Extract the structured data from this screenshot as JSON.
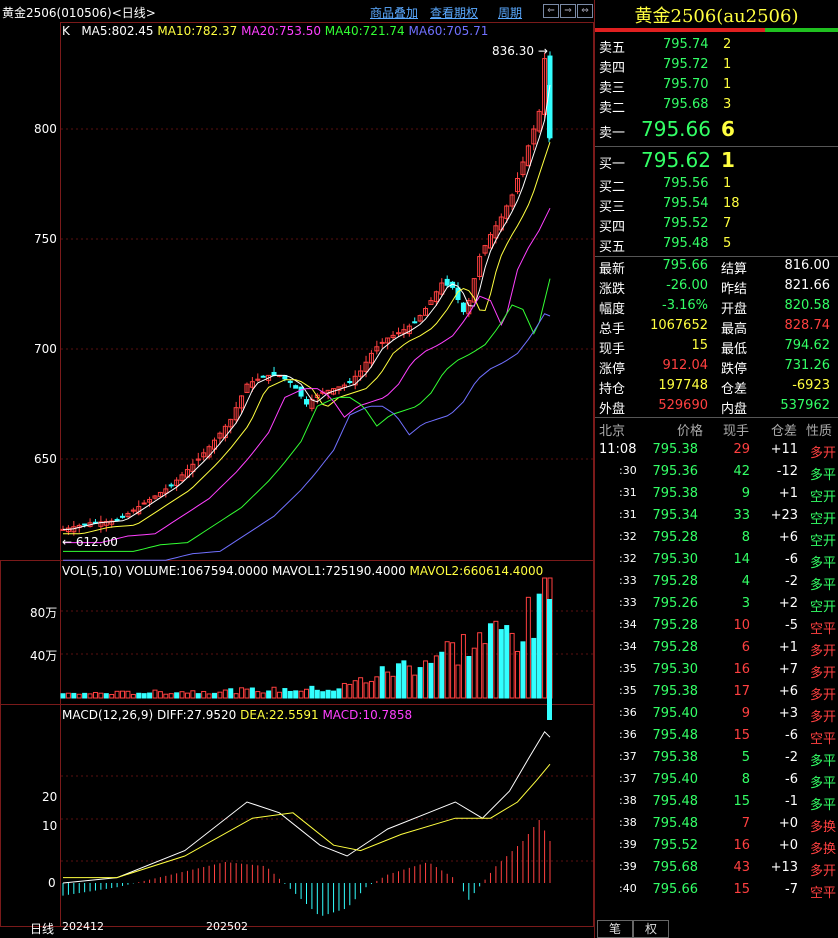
{
  "header": {
    "title": "黄金2506(010506)<日线>",
    "links": [
      "商品叠加",
      "查看期权",
      "周期"
    ]
  },
  "main_chart": {
    "k_label": "K",
    "ma": [
      {
        "label": "MA5:802.45",
        "color": "#ffffff"
      },
      {
        "label": "MA10:782.37",
        "color": "#ffff40"
      },
      {
        "label": "MA20:753.50",
        "color": "#ff40ff"
      },
      {
        "label": "MA40:721.74",
        "color": "#33ff33"
      },
      {
        "label": "MA60:705.71",
        "color": "#7070ff"
      }
    ],
    "y_ticks": [
      "800",
      "750",
      "700",
      "650"
    ],
    "high_label": "836.30",
    "low_label": "612.00"
  },
  "vol_chart": {
    "legend": "VOL(5,10) VOLUME:1067594.0000",
    "mavol1": "MAVOL1:725190.4000",
    "mavol2": "MAVOL2:660614.4000",
    "y_ticks": [
      "80万",
      "40万"
    ]
  },
  "macd_chart": {
    "legend": "MACD(12,26,9)",
    "diff": "DIFF:27.9520",
    "dea": "DEA:22.5591",
    "macd": "MACD:10.7858",
    "y_ticks": [
      "20",
      "10",
      "0"
    ]
  },
  "x_axis": {
    "label": "日线",
    "dates": [
      "202412",
      "202502"
    ]
  },
  "quote": {
    "title": "黄金2506(au2506)",
    "asks": [
      {
        "label": "卖五",
        "price": "795.74",
        "vol": "2"
      },
      {
        "label": "卖四",
        "price": "795.72",
        "vol": "1"
      },
      {
        "label": "卖三",
        "price": "795.70",
        "vol": "1"
      },
      {
        "label": "卖二",
        "price": "795.68",
        "vol": "3"
      },
      {
        "label": "卖一",
        "price": "795.66",
        "vol": "6"
      }
    ],
    "bids": [
      {
        "label": "买一",
        "price": "795.62",
        "vol": "1"
      },
      {
        "label": "买二",
        "price": "795.56",
        "vol": "1"
      },
      {
        "label": "买三",
        "price": "795.54",
        "vol": "18"
      },
      {
        "label": "买四",
        "price": "795.52",
        "vol": "7"
      },
      {
        "label": "买五",
        "price": "795.48",
        "vol": "5"
      }
    ],
    "stats": [
      {
        "l1": "最新",
        "v1": "795.66",
        "c1": "g",
        "l2": "结算",
        "v2": "816.00",
        "c2": "w"
      },
      {
        "l1": "涨跌",
        "v1": "-26.00",
        "c1": "g",
        "l2": "昨结",
        "v2": "821.66",
        "c2": "w"
      },
      {
        "l1": "幅度",
        "v1": "-3.16%",
        "c1": "g",
        "l2": "开盘",
        "v2": "820.58",
        "c2": "g"
      },
      {
        "l1": "总手",
        "v1": "1067652",
        "c1": "y",
        "l2": "最高",
        "v2": "828.74",
        "c2": "r"
      },
      {
        "l1": "现手",
        "v1": "15",
        "c1": "y",
        "l2": "最低",
        "v2": "794.62",
        "c2": "g"
      },
      {
        "l1": "涨停",
        "v1": "912.04",
        "c1": "r",
        "l2": "跌停",
        "v2": "731.26",
        "c2": "g"
      },
      {
        "l1": "持仓",
        "v1": "197748",
        "c1": "y",
        "l2": "仓差",
        "v2": "-6923",
        "c2": "y"
      },
      {
        "l1": "外盘",
        "v1": "529690",
        "c1": "r",
        "l2": "内盘",
        "v2": "537962",
        "c2": "g"
      }
    ],
    "tick_header": {
      "time": "北京",
      "price": "价格",
      "hand": "现手",
      "diff": "仓差",
      "nature": "性质"
    },
    "ticks": [
      {
        "time": "11:08",
        "price": "795.38",
        "hand": "29",
        "hc": "r",
        "diff": "+11",
        "nature": "多开",
        "nc": "r"
      },
      {
        "time": ":30",
        "price": "795.36",
        "hand": "42",
        "hc": "g",
        "diff": "-12",
        "nature": "多平",
        "nc": "g"
      },
      {
        "time": ":31",
        "price": "795.38",
        "hand": "9",
        "hc": "g",
        "diff": "+1",
        "nature": "空开",
        "nc": "g"
      },
      {
        "time": ":31",
        "price": "795.34",
        "hand": "33",
        "hc": "g",
        "diff": "+23",
        "nature": "空开",
        "nc": "g"
      },
      {
        "time": ":32",
        "price": "795.28",
        "hand": "8",
        "hc": "g",
        "diff": "+6",
        "nature": "空开",
        "nc": "g"
      },
      {
        "time": ":32",
        "price": "795.30",
        "hand": "14",
        "hc": "g",
        "diff": "-6",
        "nature": "多平",
        "nc": "g"
      },
      {
        "time": ":33",
        "price": "795.28",
        "hand": "4",
        "hc": "g",
        "diff": "-2",
        "nature": "多平",
        "nc": "g"
      },
      {
        "time": ":33",
        "price": "795.26",
        "hand": "3",
        "hc": "g",
        "diff": "+2",
        "nature": "空开",
        "nc": "g"
      },
      {
        "time": ":34",
        "price": "795.28",
        "hand": "10",
        "hc": "r",
        "diff": "-5",
        "nature": "空平",
        "nc": "r"
      },
      {
        "time": ":34",
        "price": "795.28",
        "hand": "6",
        "hc": "r",
        "diff": "+1",
        "nature": "多开",
        "nc": "r"
      },
      {
        "time": ":35",
        "price": "795.30",
        "hand": "16",
        "hc": "r",
        "diff": "+7",
        "nature": "多开",
        "nc": "r"
      },
      {
        "time": ":35",
        "price": "795.38",
        "hand": "17",
        "hc": "r",
        "diff": "+6",
        "nature": "多开",
        "nc": "r"
      },
      {
        "time": ":36",
        "price": "795.40",
        "hand": "9",
        "hc": "r",
        "diff": "+3",
        "nature": "多开",
        "nc": "r"
      },
      {
        "time": ":36",
        "price": "795.48",
        "hand": "15",
        "hc": "r",
        "diff": "-6",
        "nature": "空平",
        "nc": "r"
      },
      {
        "time": ":37",
        "price": "795.38",
        "hand": "5",
        "hc": "g",
        "diff": "-2",
        "nature": "多平",
        "nc": "g"
      },
      {
        "time": ":37",
        "price": "795.40",
        "hand": "8",
        "hc": "g",
        "diff": "-6",
        "nature": "多平",
        "nc": "g"
      },
      {
        "time": ":38",
        "price": "795.48",
        "hand": "15",
        "hc": "g",
        "diff": "-1",
        "nature": "多平",
        "nc": "g"
      },
      {
        "time": ":38",
        "price": "795.48",
        "hand": "7",
        "hc": "r",
        "diff": "+0",
        "nature": "多换",
        "nc": "r"
      },
      {
        "time": ":39",
        "price": "795.52",
        "hand": "16",
        "hc": "r",
        "diff": "+0",
        "nature": "多换",
        "nc": "r"
      },
      {
        "time": ":39",
        "price": "795.68",
        "hand": "43",
        "hc": "r",
        "diff": "+13",
        "nature": "多开",
        "nc": "r"
      },
      {
        "time": ":40",
        "price": "795.66",
        "hand": "15",
        "hc": "r",
        "diff": "-7",
        "nature": "空平",
        "nc": "r"
      }
    ],
    "tabs": [
      "笔",
      "权"
    ]
  }
}
